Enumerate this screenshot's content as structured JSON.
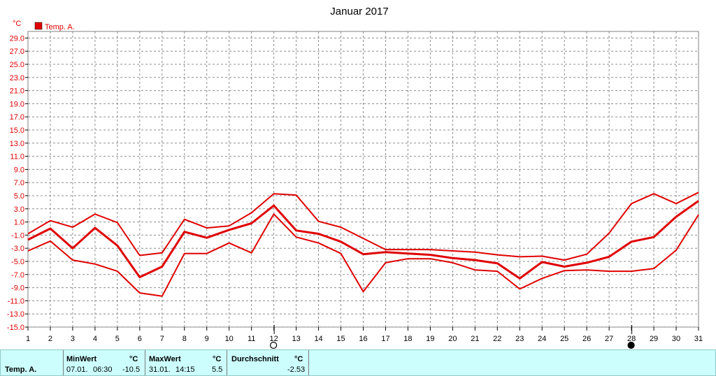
{
  "chart_data": {
    "type": "line",
    "title": "Januar 2017",
    "unit_label": "°C",
    "legend": {
      "label": "Temp. A.",
      "color": "#e00000",
      "placement": "top-left"
    },
    "ylim": [
      -15,
      30
    ],
    "yticks": [
      29.0,
      27.0,
      25.0,
      23.0,
      21.0,
      19.0,
      17.0,
      15.0,
      13.0,
      11.0,
      9.0,
      7.0,
      5.0,
      3.0,
      1.0,
      -1.0,
      -3.0,
      -5.0,
      -7.0,
      -9.0,
      -11.0,
      -13.0,
      -15.0
    ],
    "x": [
      1,
      2,
      3,
      4,
      5,
      6,
      7,
      8,
      9,
      10,
      11,
      12,
      13,
      14,
      15,
      16,
      17,
      18,
      19,
      20,
      21,
      22,
      23,
      24,
      25,
      26,
      27,
      28,
      29,
      30,
      31
    ],
    "grid": true,
    "moon_markers": [
      {
        "day": 12,
        "phase": "full-moon"
      },
      {
        "day": 28,
        "phase": "new-moon"
      }
    ],
    "series": [
      {
        "name": "",
        "role": "max",
        "values": [
          -0.8,
          1.2,
          0.2,
          2.2,
          0.9,
          -4.1,
          -3.7,
          1.4,
          0.1,
          0.4,
          2.4,
          5.3,
          5.1,
          1.1,
          0.2,
          -1.5,
          -3.2,
          -3.2,
          -3.2,
          -3.4,
          -3.6,
          -4.0,
          -4.3,
          -4.2,
          -4.8,
          -3.9,
          -0.7,
          3.8,
          5.3,
          3.8,
          5.5
        ]
      },
      {
        "name": "",
        "role": "mean",
        "values": [
          -1.7,
          0.0,
          -3.0,
          0.1,
          -2.6,
          -7.4,
          -5.8,
          -0.5,
          -1.4,
          -0.2,
          0.8,
          3.5,
          -0.3,
          -0.8,
          -2.0,
          -3.9,
          -3.6,
          -3.8,
          -4.0,
          -4.5,
          -4.8,
          -5.3,
          -7.6,
          -5.1,
          -5.8,
          -5.2,
          -4.3,
          -2.0,
          -1.3,
          1.8,
          4.2
        ]
      },
      {
        "name": "",
        "role": "min",
        "values": [
          -3.4,
          -1.9,
          -4.8,
          -5.4,
          -6.5,
          -9.8,
          -10.3,
          -3.8,
          -3.8,
          -2.2,
          -3.7,
          2.2,
          -1.3,
          -2.2,
          -3.8,
          -9.6,
          -5.2,
          -4.6,
          -4.6,
          -5.2,
          -6.3,
          -6.5,
          -9.2,
          -7.6,
          -6.4,
          -6.3,
          -6.5,
          -6.5,
          -6.1,
          -3.3,
          2.1
        ]
      }
    ]
  },
  "stats": {
    "row_label": "Temp. A.",
    "min": {
      "header": "MinWert",
      "unit": "°C",
      "date": "07.01.",
      "time": "06:30",
      "value": "-10.5"
    },
    "max": {
      "header": "MaxWert",
      "unit": "°C",
      "date": "31.01.",
      "time": "14:15",
      "value": "5.5"
    },
    "avg": {
      "header": "Durchschnitt",
      "unit": "°C",
      "value": "-2.53"
    }
  }
}
